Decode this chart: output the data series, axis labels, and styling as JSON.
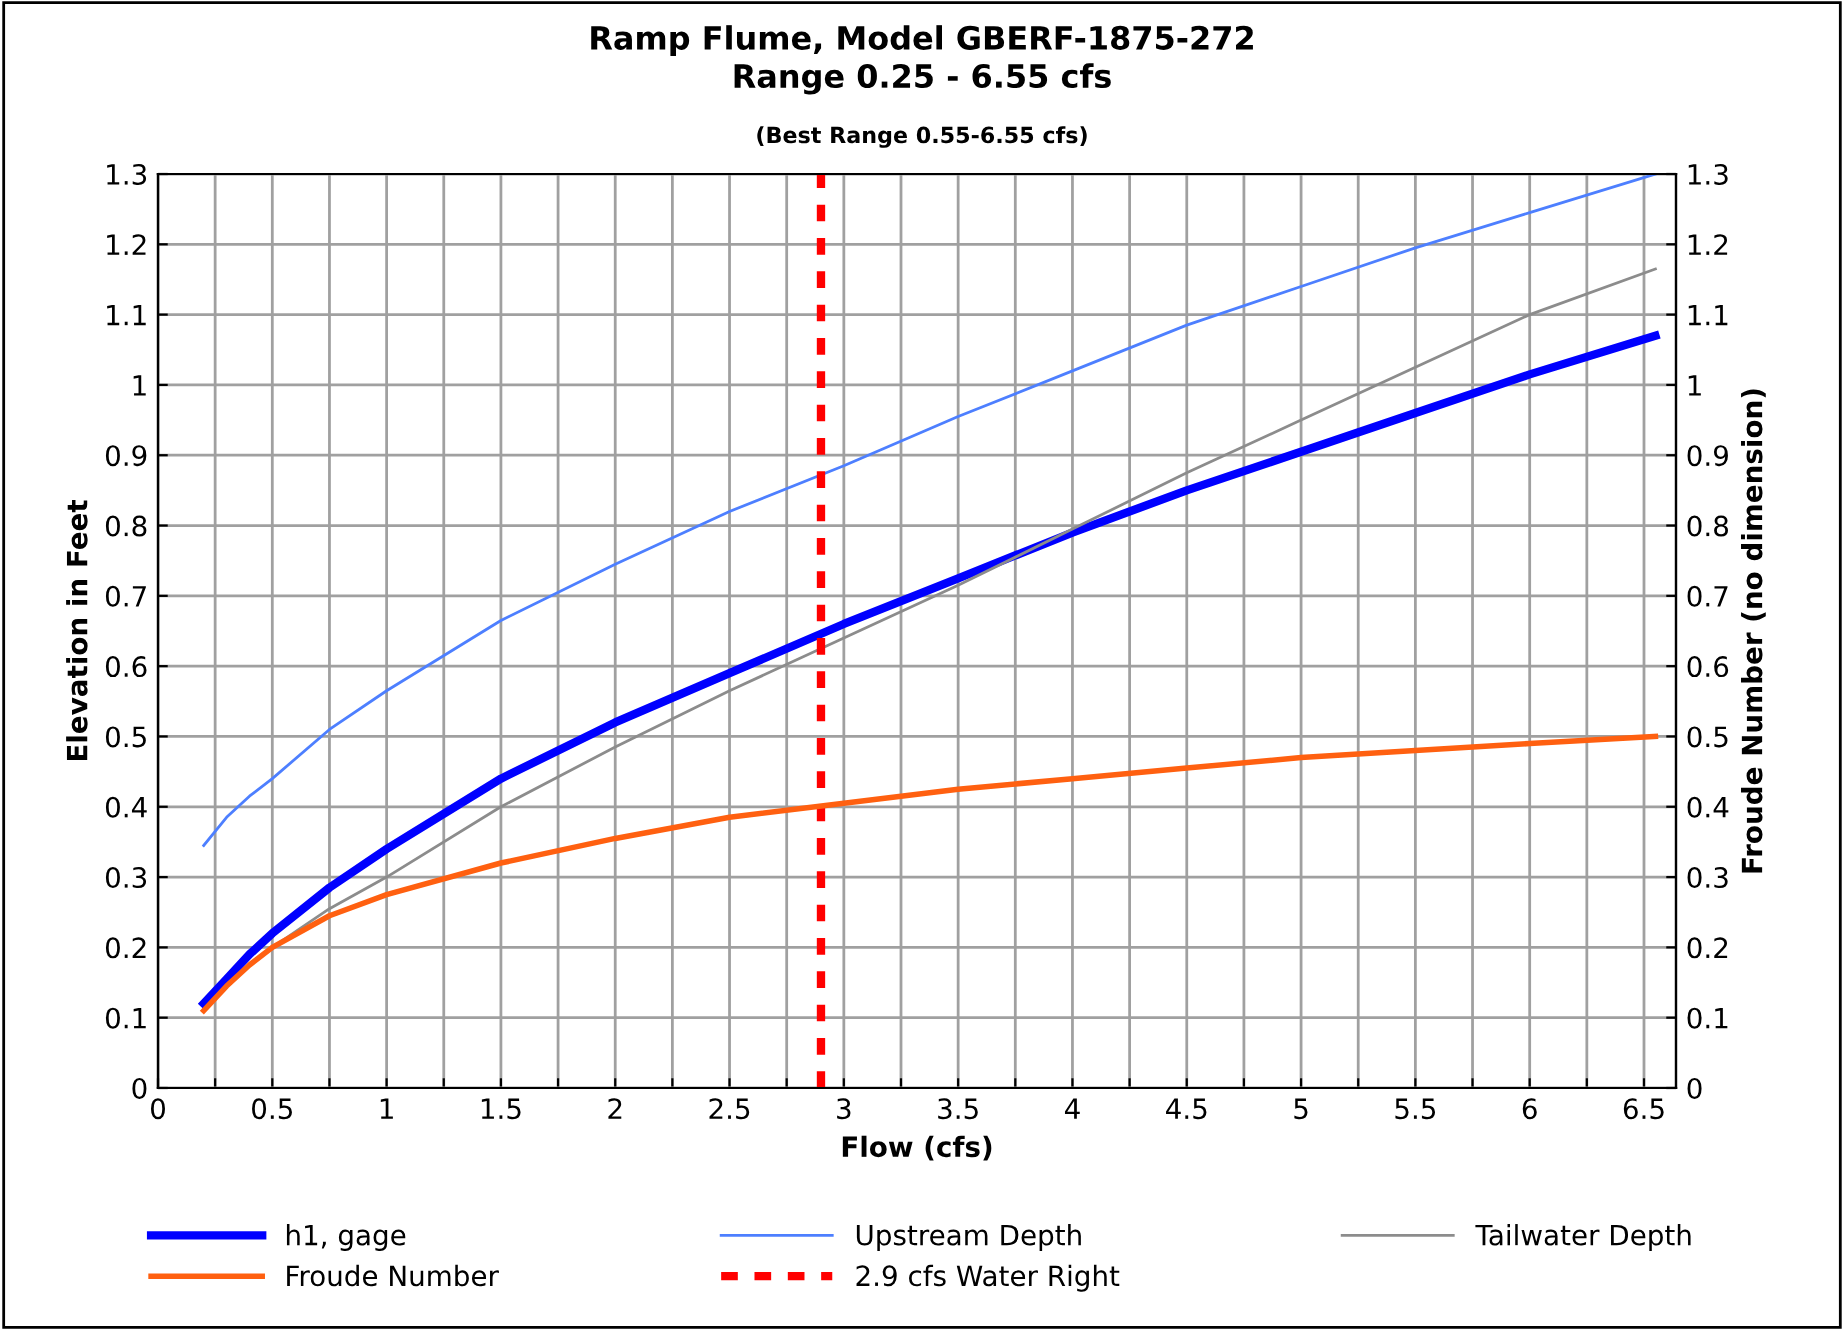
{
  "chart_data": {
    "type": "line",
    "title": "Ramp Flume, Model GBERF-1875-272\nRange 0.25 - 6.55 cfs",
    "subtitle": "(Best Range 0.55-6.55 cfs)",
    "xlabel": "Flow (cfs)",
    "ylabel": "Elevation in Feet",
    "y2label": "Froude Number (no dimension)",
    "x": [
      0.2,
      0.3,
      0.4,
      0.5,
      0.75,
      1,
      1.5,
      2,
      2.5,
      3,
      3.5,
      4,
      4.5,
      5,
      5.5,
      6,
      6.55
    ],
    "series": [
      {
        "name": "h1, gage",
        "color": "#0000ff",
        "values": [
          0.12,
          0.155,
          0.19,
          0.22,
          0.285,
          0.34,
          0.44,
          0.52,
          0.59,
          0.66,
          0.725,
          0.79,
          0.85,
          0.905,
          0.96,
          1.015,
          1.07
        ]
      },
      {
        "name": "Upstream Depth",
        "color": "#4d7fff",
        "values": [
          0.345,
          0.385,
          0.415,
          0.44,
          0.51,
          0.565,
          0.665,
          0.745,
          0.82,
          0.885,
          0.955,
          1.02,
          1.085,
          1.14,
          1.195,
          1.245,
          1.3
        ]
      },
      {
        "name": "Tailwater Depth",
        "color": "#8c8c8c",
        "values": [
          null,
          null,
          null,
          0.2,
          0.255,
          0.3,
          0.4,
          0.485,
          0.565,
          0.64,
          0.715,
          0.795,
          0.875,
          0.95,
          1.025,
          1.1,
          1.165
        ]
      },
      {
        "name": "Froude Number",
        "color": "#ff6010",
        "axis": "y2",
        "values": [
          0.11,
          0.145,
          0.175,
          0.2,
          0.245,
          0.275,
          0.32,
          0.355,
          0.385,
          0.405,
          0.425,
          0.44,
          0.455,
          0.47,
          0.48,
          0.49,
          0.5
        ]
      }
    ],
    "ref_lines": [
      {
        "axis": "x",
        "value": 2.9,
        "label": "2.9 cfs Water Right",
        "color": "#ff0000",
        "line_style": "dashed"
      }
    ],
    "xlim": [
      0,
      6.64
    ],
    "ylim": [
      0,
      1.3
    ],
    "y2lim": [
      0,
      1.3
    ],
    "xticks": [
      0,
      {
        "value": 0.25,
        "label": null
      },
      0.5,
      {
        "value": 0.75,
        "label": null
      },
      1,
      {
        "value": 1.25,
        "label": null
      },
      1.5,
      {
        "value": 1.75,
        "label": null
      },
      2,
      {
        "value": 2.25,
        "label": null
      },
      2.5,
      {
        "value": 2.75,
        "label": null
      },
      3,
      {
        "value": 3.25,
        "label": null
      },
      3.5,
      {
        "value": 3.75,
        "label": null
      },
      4,
      {
        "value": 4.25,
        "label": null
      },
      4.5,
      {
        "value": 4.75,
        "label": null
      },
      5,
      {
        "value": 5.25,
        "label": null
      },
      5.5,
      {
        "value": 5.75,
        "label": null
      },
      6,
      {
        "value": 6.25,
        "label": null
      },
      6.5
    ],
    "yticks": [
      0,
      0.1,
      0.2,
      0.3,
      0.4,
      0.5,
      0.6,
      0.7,
      0.8,
      0.9,
      1,
      1.1,
      1.2,
      1.3
    ],
    "y2ticks": [
      0,
      0.1,
      0.2,
      0.3,
      0.4,
      0.5,
      0.6,
      0.7,
      0.8,
      0.9,
      1,
      1.1,
      1.2,
      1.3
    ],
    "grid": true,
    "legend": "bottom",
    "marker": "none",
    "line_style": "solid"
  }
}
